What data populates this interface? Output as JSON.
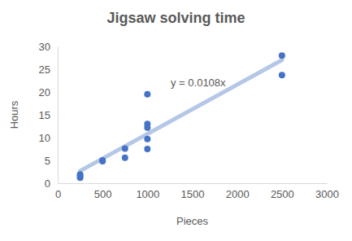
{
  "chart_data": {
    "type": "scatter",
    "title": "Jigsaw solving time",
    "x_label": "Pieces",
    "y_label": "Hours",
    "xlim": [
      0,
      3000
    ],
    "xticks": [
      0,
      500,
      1000,
      1500,
      2000,
      2500,
      3000
    ],
    "ylim": [
      0,
      30
    ],
    "yticks": [
      0,
      5,
      10,
      15,
      20,
      25,
      30
    ],
    "grid": false,
    "annotations": [
      "y = 0.0108x"
    ],
    "series": [
      {
        "type": "scatter",
        "color": "#4472c4",
        "marker": "circle",
        "x": [
          250,
          250,
          250,
          500,
          500,
          750,
          750,
          1000,
          1000,
          1000,
          1000,
          1000,
          2500,
          2500
        ],
        "values": [
          1.2,
          1.6,
          1.9,
          4.8,
          5.0,
          5.6,
          7.6,
          19.5,
          13.0,
          12.2,
          9.7,
          7.5,
          28.0,
          23.7
        ]
      },
      {
        "type": "line",
        "color": "#b4c7e7",
        "line_style": "solid",
        "x": [
          250,
          2500
        ],
        "values": [
          2.7,
          27.0
        ]
      }
    ]
  }
}
